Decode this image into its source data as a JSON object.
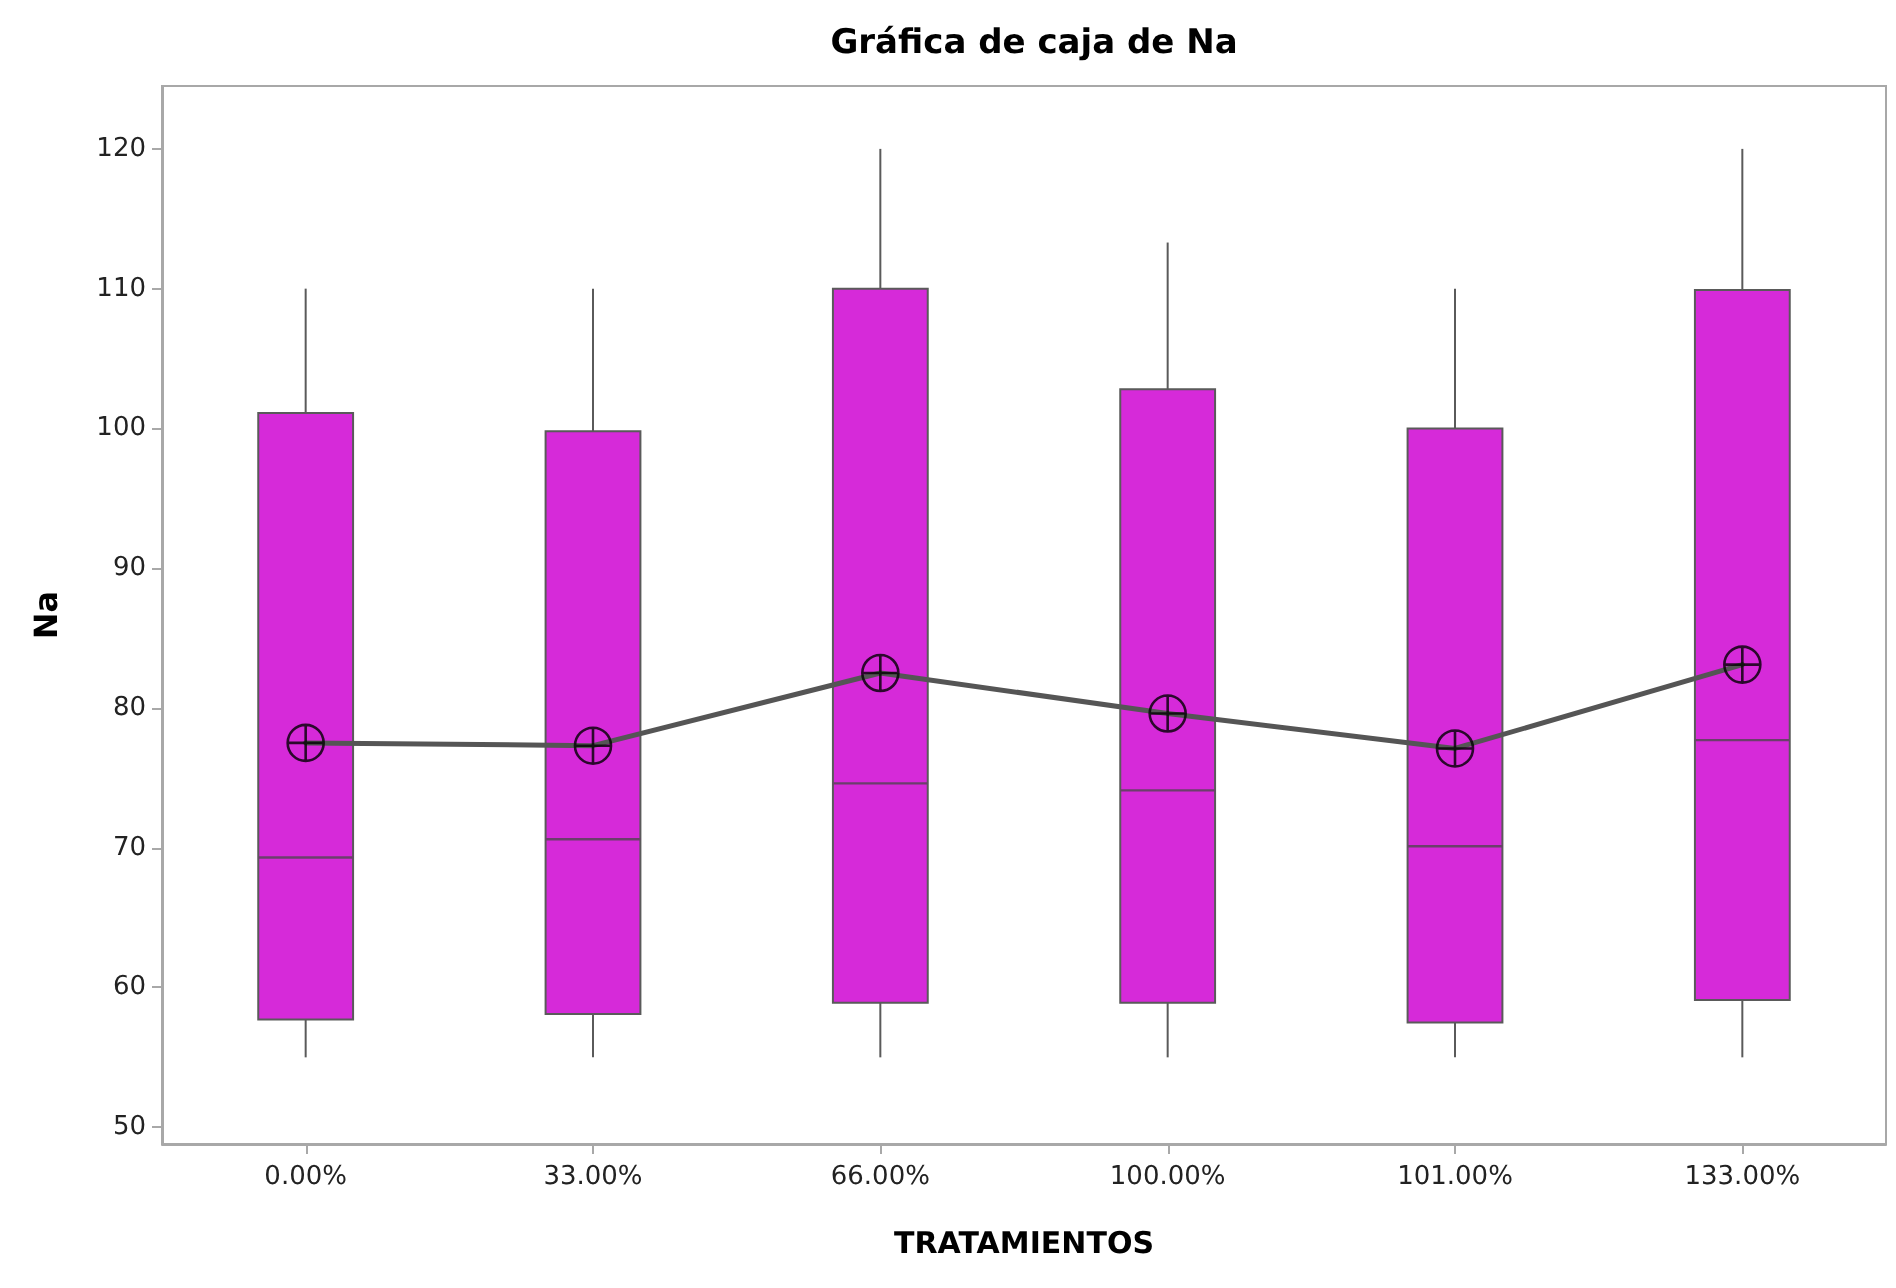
{
  "chart_data": {
    "type": "box",
    "title": "Gráfica de caja de Na",
    "xlabel": "TRATAMIENTOS",
    "ylabel": "Na",
    "categories": [
      "0.00%",
      "33.00%",
      "66.00%",
      "100.00%",
      "101.00%",
      "133.00%"
    ],
    "ylim": [
      48.8,
      124.5
    ],
    "yticks": [
      50,
      60,
      70,
      80,
      90,
      100,
      110,
      120
    ],
    "grid": false,
    "series": [
      {
        "type": "box",
        "color": "#d62ad9",
        "boxes": [
          {
            "low": 55,
            "q1": 57.7,
            "median": 69.3,
            "q3": 101.1,
            "high": 110,
            "mean": 77.5
          },
          {
            "low": 55,
            "q1": 58.1,
            "median": 70.6,
            "q3": 99.8,
            "high": 110,
            "mean": 77.3
          },
          {
            "low": 55,
            "q1": 58.9,
            "median": 74.6,
            "q3": 110,
            "high": 120,
            "mean": 82.5
          },
          {
            "low": 55,
            "q1": 58.9,
            "median": 74.1,
            "q3": 102.8,
            "high": 113.3,
            "mean": 79.6
          },
          {
            "low": 55,
            "q1": 57.5,
            "median": 70.1,
            "q3": 100,
            "high": 110,
            "mean": 77.1
          },
          {
            "low": 55,
            "q1": 59.1,
            "median": 77.7,
            "q3": 109.9,
            "high": 120,
            "mean": 83.1
          }
        ]
      },
      {
        "type": "line",
        "color": "#555555",
        "values": [
          77.5,
          77.3,
          82.5,
          79.6,
          77.1,
          83.1
        ]
      }
    ]
  }
}
